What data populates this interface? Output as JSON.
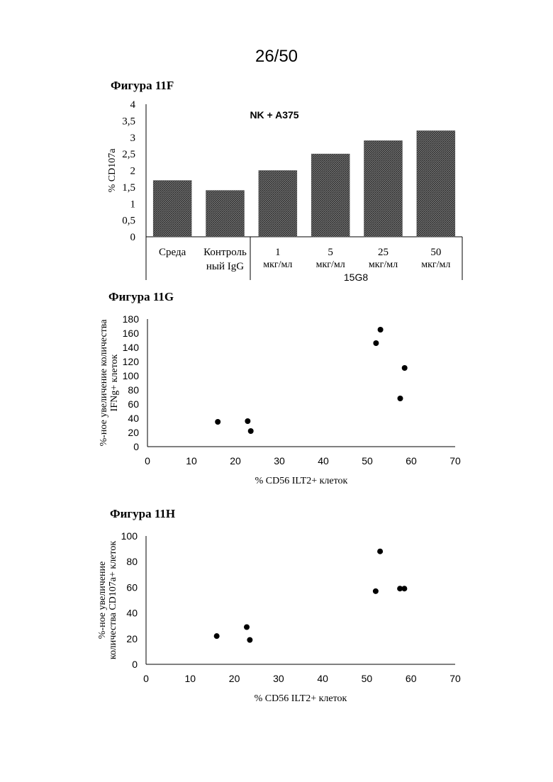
{
  "page_number": "26/50",
  "chart_data": [
    {
      "figure_label": "Фигура 11F",
      "type": "bar",
      "annotation": "NK + A375",
      "ylabel": "% CD107a",
      "ylim": [
        0,
        4
      ],
      "yticks": [
        "0",
        "0,5",
        "1",
        "1,5",
        "2",
        "2,5",
        "3",
        "3,5",
        "4"
      ],
      "categories": [
        {
          "line1": "Среда",
          "line2": ""
        },
        {
          "line1": "Контроль",
          "line2": "ный IgG"
        },
        {
          "line1": "1",
          "line2": "мкг/мл"
        },
        {
          "line1": "5",
          "line2": "мкг/мл"
        },
        {
          "line1": "25",
          "line2": "мкг/мл"
        },
        {
          "line1": "50",
          "line2": "мкг/мл"
        }
      ],
      "values": [
        1.7,
        1.4,
        2.0,
        2.5,
        2.9,
        3.2
      ],
      "group_label": "15G8",
      "bar_fill": "#555555"
    },
    {
      "figure_label": "Фигура 11G",
      "type": "scatter",
      "xlabel": "% CD56 ILT2+ клеток",
      "ylabel_line1": "%-ное увеличение количества",
      "ylabel_line2": "IFNg+ клеток",
      "xlim": [
        0,
        70
      ],
      "ylim": [
        0,
        180
      ],
      "xticks": [
        "0",
        "10",
        "20",
        "30",
        "40",
        "50",
        "60",
        "70"
      ],
      "yticks": [
        "0",
        "20",
        "40",
        "60",
        "80",
        "100",
        "120",
        "140",
        "160",
        "180"
      ],
      "points": [
        {
          "x": 16,
          "y": 35
        },
        {
          "x": 22.8,
          "y": 36
        },
        {
          "x": 23.5,
          "y": 22
        },
        {
          "x": 52,
          "y": 146
        },
        {
          "x": 53,
          "y": 165
        },
        {
          "x": 57.5,
          "y": 68
        },
        {
          "x": 58.5,
          "y": 111
        }
      ]
    },
    {
      "figure_label": "Фигура 11H",
      "type": "scatter",
      "xlabel": "% CD56 ILT2+ клеток",
      "ylabel_line1": "%-ное увеличение",
      "ylabel_line2": "количества CD107a+ клеток",
      "xlim": [
        0,
        70
      ],
      "ylim": [
        0,
        100
      ],
      "xticks": [
        "0",
        "10",
        "20",
        "30",
        "40",
        "50",
        "60",
        "70"
      ],
      "yticks": [
        "0",
        "20",
        "40",
        "60",
        "80",
        "100"
      ],
      "points": [
        {
          "x": 16,
          "y": 22
        },
        {
          "x": 22.8,
          "y": 29
        },
        {
          "x": 23.5,
          "y": 19
        },
        {
          "x": 52,
          "y": 57
        },
        {
          "x": 53,
          "y": 88
        },
        {
          "x": 57.5,
          "y": 59
        },
        {
          "x": 58.5,
          "y": 59
        }
      ]
    }
  ]
}
